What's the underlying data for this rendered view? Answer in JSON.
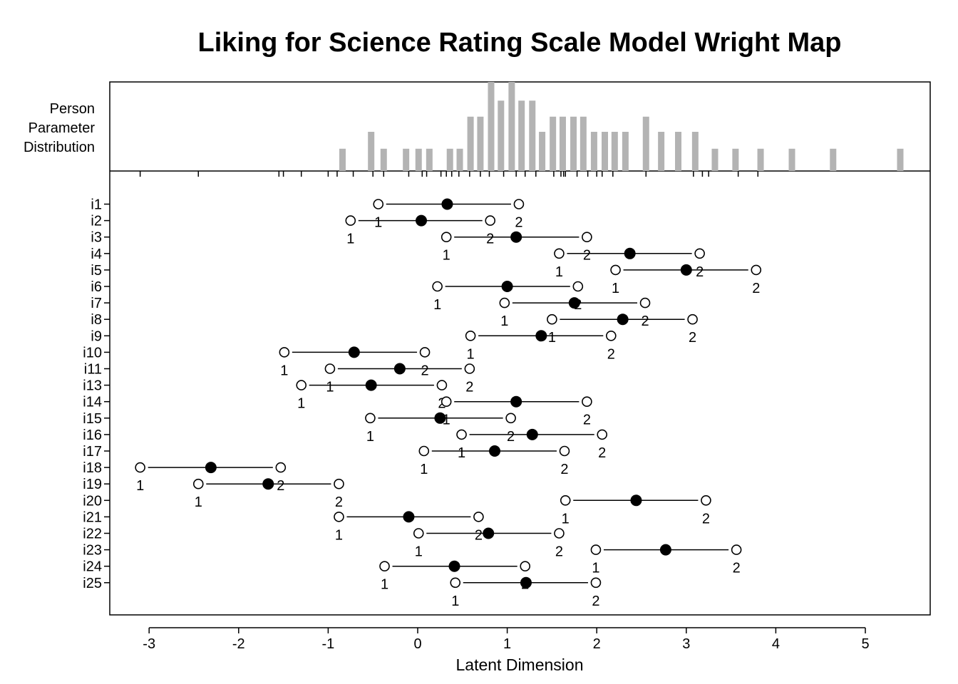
{
  "chart_data": {
    "type": "scatter",
    "title": "Liking for Science Rating Scale Model Wright Map",
    "xlabel": "Latent Dimension",
    "person_label": [
      "Person",
      "Parameter",
      "Distribution"
    ],
    "xlim": [
      -3.5,
      5.7
    ],
    "xticks": [
      -3,
      -2,
      -1,
      0,
      1,
      2,
      3,
      4,
      5
    ],
    "threshold_labels": [
      "1",
      "2"
    ],
    "colors": {
      "histogram": "#b3b3b3",
      "line": "#000000"
    },
    "person_distribution": [
      {
        "x": -0.84,
        "h": 0.25
      },
      {
        "x": -0.52,
        "h": 0.44
      },
      {
        "x": -0.38,
        "h": 0.25
      },
      {
        "x": -0.13,
        "h": 0.25
      },
      {
        "x": 0.01,
        "h": 0.25
      },
      {
        "x": 0.13,
        "h": 0.25
      },
      {
        "x": 0.36,
        "h": 0.25
      },
      {
        "x": 0.47,
        "h": 0.25
      },
      {
        "x": 0.59,
        "h": 0.61
      },
      {
        "x": 0.7,
        "h": 0.61
      },
      {
        "x": 0.82,
        "h": 1.0
      },
      {
        "x": 0.93,
        "h": 0.79
      },
      {
        "x": 1.05,
        "h": 1.0
      },
      {
        "x": 1.16,
        "h": 0.79
      },
      {
        "x": 1.28,
        "h": 0.79
      },
      {
        "x": 1.39,
        "h": 0.44
      },
      {
        "x": 1.51,
        "h": 0.61
      },
      {
        "x": 1.62,
        "h": 0.61
      },
      {
        "x": 1.74,
        "h": 0.61
      },
      {
        "x": 1.85,
        "h": 0.61
      },
      {
        "x": 1.97,
        "h": 0.44
      },
      {
        "x": 2.09,
        "h": 0.44
      },
      {
        "x": 2.2,
        "h": 0.44
      },
      {
        "x": 2.32,
        "h": 0.44
      },
      {
        "x": 2.55,
        "h": 0.61
      },
      {
        "x": 2.72,
        "h": 0.44
      },
      {
        "x": 2.91,
        "h": 0.44
      },
      {
        "x": 3.1,
        "h": 0.44
      },
      {
        "x": 3.32,
        "h": 0.25
      },
      {
        "x": 3.55,
        "h": 0.25
      },
      {
        "x": 3.83,
        "h": 0.25
      },
      {
        "x": 4.18,
        "h": 0.25
      },
      {
        "x": 4.64,
        "h": 0.25
      },
      {
        "x": 5.39,
        "h": 0.25
      }
    ],
    "person_rug": [
      -3.1,
      -2.45,
      -1.55,
      -1.5,
      -1.3,
      -1.0,
      -0.9,
      -0.72,
      -0.5,
      -0.38,
      -0.1,
      0.05,
      0.1,
      0.26,
      0.32,
      0.38,
      0.46,
      0.58,
      0.7,
      0.8,
      0.96,
      1.1,
      1.2,
      1.32,
      1.52,
      1.6,
      1.63,
      1.65,
      1.78,
      1.9,
      2.0,
      2.06,
      2.18,
      2.55,
      3.08,
      3.18,
      3.25,
      3.58,
      3.8
    ],
    "items": [
      {
        "name": "i1",
        "t1": -0.44,
        "loc": 0.33,
        "t2": 1.13
      },
      {
        "name": "i2",
        "t1": -0.75,
        "loc": 0.04,
        "t2": 0.81
      },
      {
        "name": "i3",
        "t1": 0.32,
        "loc": 1.1,
        "t2": 1.89
      },
      {
        "name": "i4",
        "t1": 1.58,
        "loc": 2.37,
        "t2": 3.15
      },
      {
        "name": "i5",
        "t1": 2.21,
        "loc": 3.0,
        "t2": 3.78
      },
      {
        "name": "i6",
        "t1": 0.22,
        "loc": 1.0,
        "t2": 1.79
      },
      {
        "name": "i7",
        "t1": 0.97,
        "loc": 1.75,
        "t2": 2.54
      },
      {
        "name": "i8",
        "t1": 1.5,
        "loc": 2.29,
        "t2": 3.07
      },
      {
        "name": "i9",
        "t1": 0.59,
        "loc": 1.38,
        "t2": 2.16
      },
      {
        "name": "i10",
        "t1": -1.49,
        "loc": -0.71,
        "t2": 0.08
      },
      {
        "name": "i11",
        "t1": -0.98,
        "loc": -0.2,
        "t2": 0.58
      },
      {
        "name": "i13",
        "t1": -1.3,
        "loc": -0.52,
        "t2": 0.27
      },
      {
        "name": "i14",
        "t1": 0.32,
        "loc": 1.1,
        "t2": 1.89
      },
      {
        "name": "i15",
        "t1": -0.53,
        "loc": 0.25,
        "t2": 1.04
      },
      {
        "name": "i16",
        "t1": 0.49,
        "loc": 1.28,
        "t2": 2.06
      },
      {
        "name": "i17",
        "t1": 0.07,
        "loc": 0.86,
        "t2": 1.64
      },
      {
        "name": "i18",
        "t1": -3.1,
        "loc": -2.31,
        "t2": -1.53
      },
      {
        "name": "i19",
        "t1": -2.45,
        "loc": -1.67,
        "t2": -0.88
      },
      {
        "name": "i20",
        "t1": 1.65,
        "loc": 2.44,
        "t2": 3.22
      },
      {
        "name": "i21",
        "t1": -0.88,
        "loc": -0.1,
        "t2": 0.68
      },
      {
        "name": "i22",
        "t1": 0.01,
        "loc": 0.79,
        "t2": 1.58
      },
      {
        "name": "i23",
        "t1": 1.99,
        "loc": 2.77,
        "t2": 3.56
      },
      {
        "name": "i24",
        "t1": -0.37,
        "loc": 0.41,
        "t2": 1.2
      },
      {
        "name": "i25",
        "t1": 0.42,
        "loc": 1.21,
        "t2": 1.99
      }
    ]
  }
}
